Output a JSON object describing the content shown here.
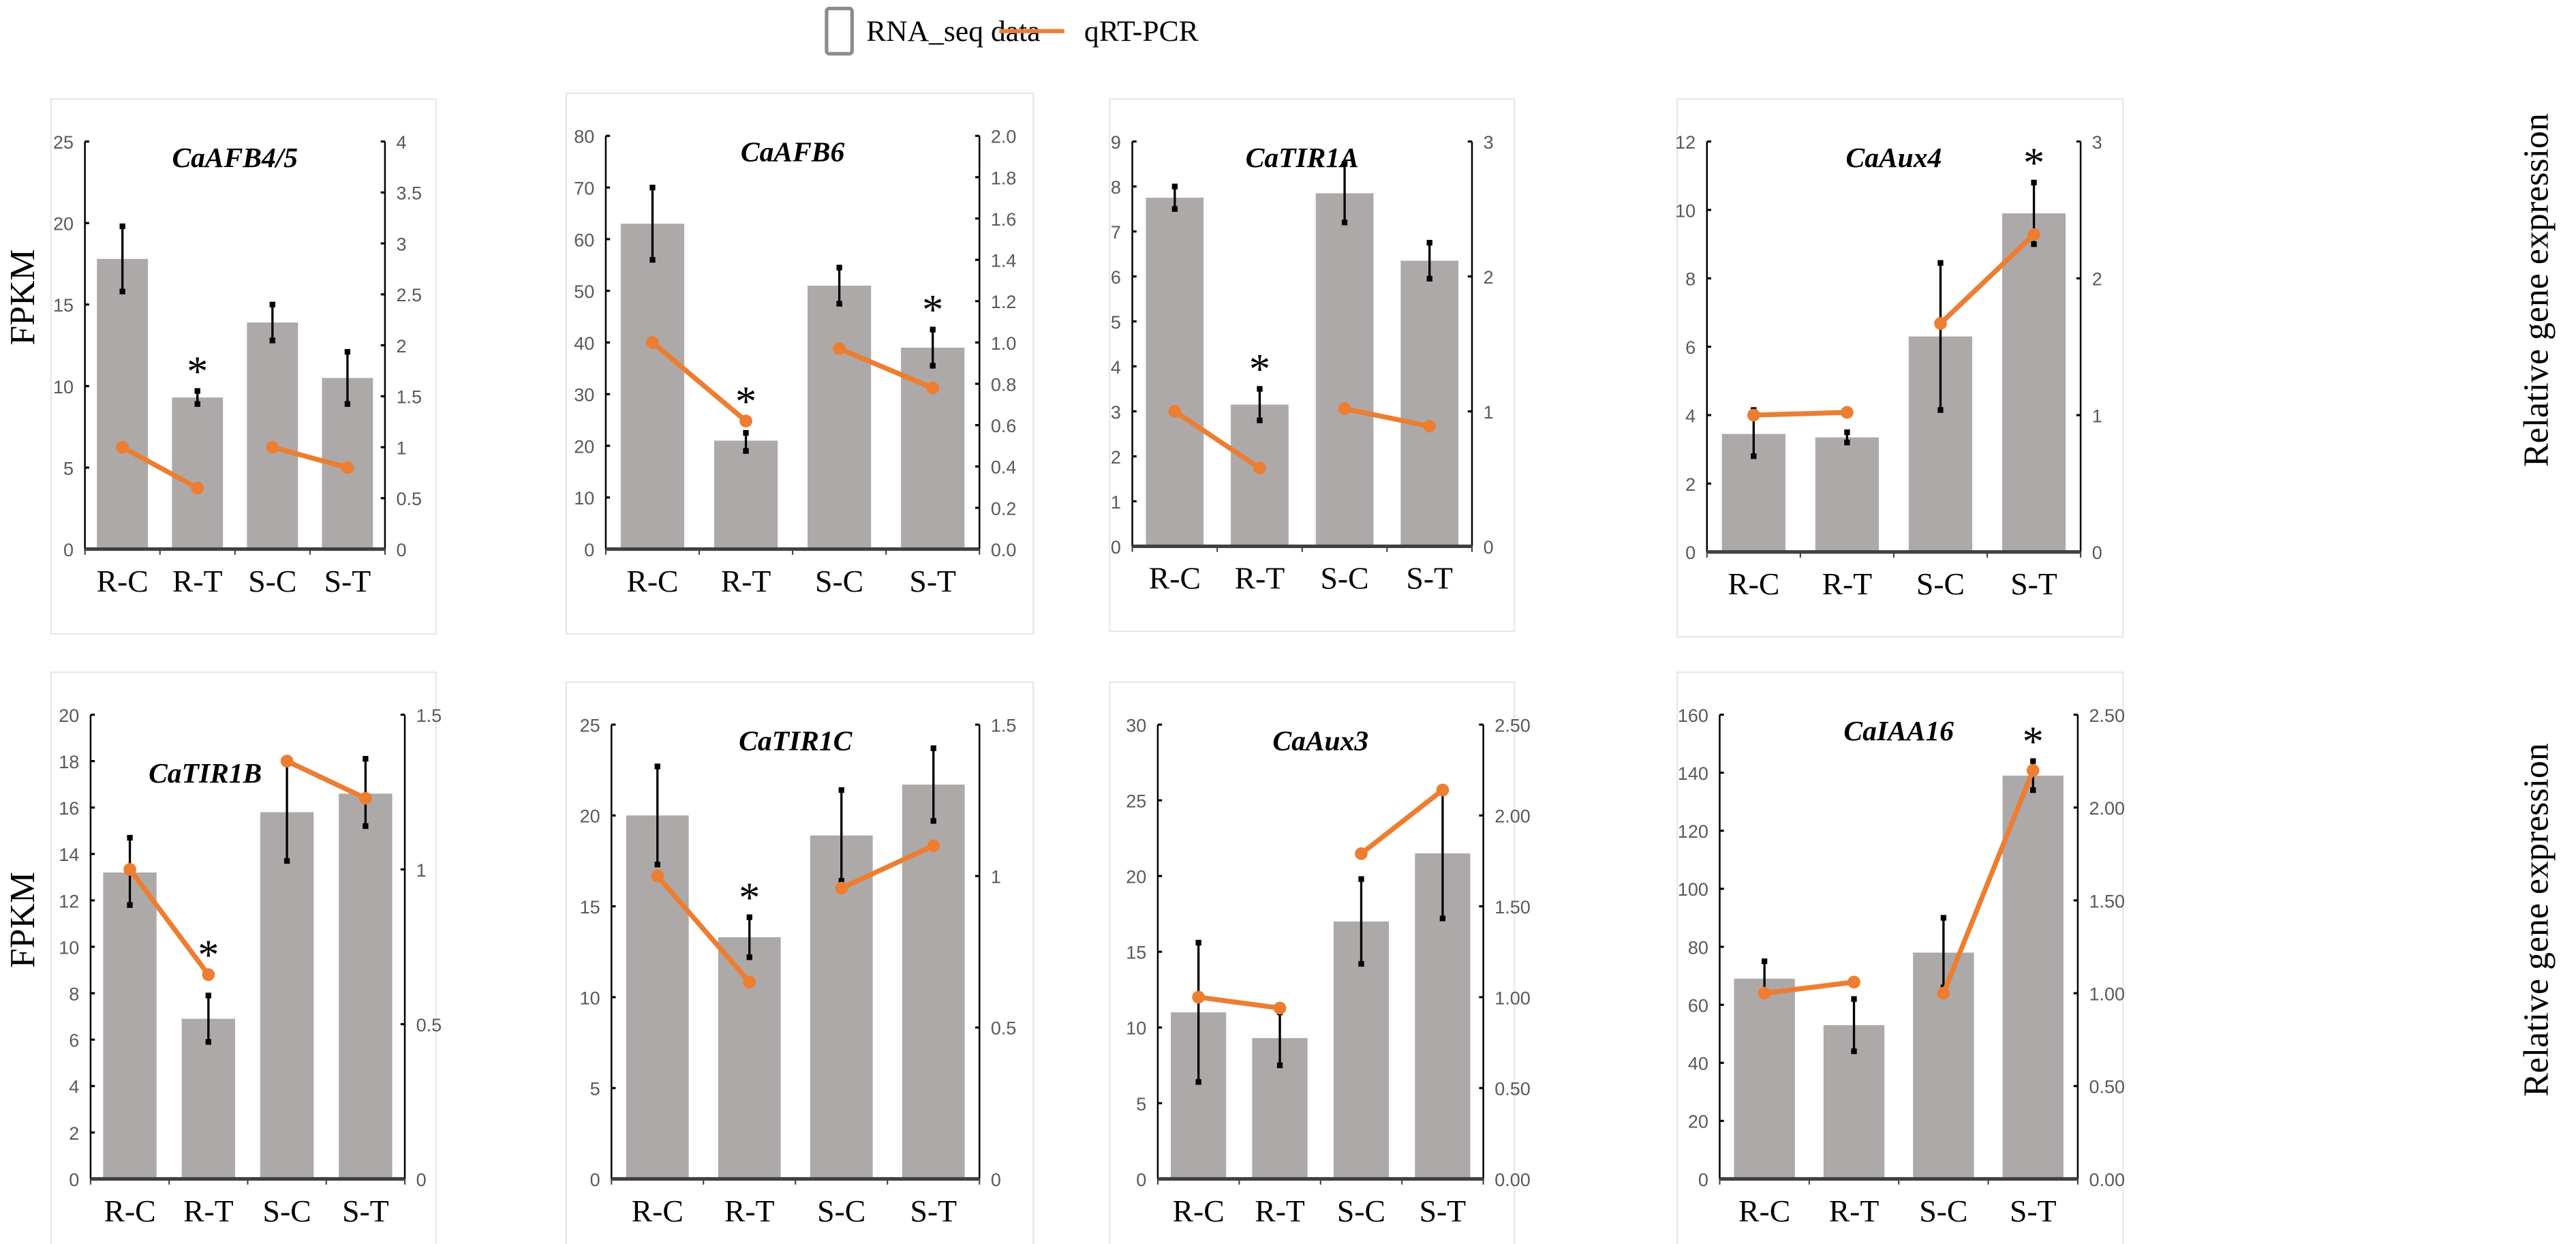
{
  "legend": {
    "bar_label": "RNA_seq data",
    "line_label": "qRT-PCR"
  },
  "left_axis_label": "FPKM",
  "right_axis_label": "Relative gene expression",
  "colors": {
    "bar": "#ADA9A8",
    "line": "#ED7D31",
    "error": "#000000"
  },
  "chart_data": [
    {
      "type": "bar+line",
      "title": "CaAFB4/5",
      "categories": [
        "R-C",
        "R-T",
        "S-C",
        "S-T"
      ],
      "bars": [
        17.8,
        9.3,
        13.9,
        10.5
      ],
      "err_low": [
        15.8,
        8.9,
        12.8,
        8.9
      ],
      "err_high": [
        19.8,
        9.7,
        15.0,
        12.1
      ],
      "qrt": [
        1.0,
        0.6,
        1.0,
        0.8
      ],
      "stars": [
        "R-T"
      ],
      "ylim": [
        0,
        25
      ],
      "y_ticks": [
        "0",
        "5",
        "10",
        "15",
        "20",
        "25"
      ],
      "y2lim": [
        0,
        4
      ],
      "y2_ticks": [
        "0",
        "0.5",
        "1",
        "1.5",
        "2",
        "2.5",
        "3",
        "3.5",
        "4"
      ]
    },
    {
      "type": "bar+line",
      "title": "CaAFB6",
      "categories": [
        "R-C",
        "R-T",
        "S-C",
        "S-T"
      ],
      "bars": [
        63,
        21,
        51,
        39
      ],
      "err_low": [
        56,
        19,
        47.5,
        35.5
      ],
      "err_high": [
        70,
        22.5,
        54.5,
        42.5
      ],
      "qrt": [
        1.0,
        0.62,
        0.97,
        0.78
      ],
      "stars": [
        "R-T",
        "S-T"
      ],
      "ylim": [
        0,
        80
      ],
      "y_ticks": [
        "0",
        "10",
        "20",
        "30",
        "40",
        "50",
        "60",
        "70",
        "80"
      ],
      "y2lim": [
        0,
        2
      ],
      "y2_ticks": [
        "0.0",
        "0.2",
        "0.4",
        "0.6",
        "0.8",
        "1.0",
        "1.2",
        "1.4",
        "1.6",
        "1.8",
        "2.0"
      ]
    },
    {
      "type": "bar+line",
      "title": "CaTIR1A",
      "categories": [
        "R-C",
        "R-T",
        "S-C",
        "S-T"
      ],
      "bars": [
        7.75,
        3.15,
        7.85,
        6.35
      ],
      "err_low": [
        7.5,
        2.8,
        7.2,
        5.95
      ],
      "err_high": [
        8.0,
        3.5,
        8.5,
        6.75
      ],
      "qrt": [
        1.0,
        0.58,
        1.02,
        0.89
      ],
      "stars": [
        "R-T"
      ],
      "ylim": [
        0,
        9
      ],
      "y_ticks": [
        "0",
        "1",
        "2",
        "3",
        "4",
        "5",
        "6",
        "7",
        "8",
        "9"
      ],
      "y2lim": [
        0,
        3
      ],
      "y2_ticks": [
        "0",
        "1",
        "2",
        "3"
      ]
    },
    {
      "type": "bar+line",
      "title": "CaAux4",
      "categories": [
        "R-C",
        "R-T",
        "S-C",
        "S-T"
      ],
      "bars": [
        3.45,
        3.35,
        6.3,
        9.9
      ],
      "err_low": [
        2.8,
        3.2,
        4.15,
        9.0
      ],
      "err_high": [
        4.15,
        3.5,
        8.45,
        10.8
      ],
      "qrt": [
        1.0,
        1.02,
        1.67,
        2.32
      ],
      "stars": [
        "S-T"
      ],
      "ylim": [
        0,
        12
      ],
      "y_ticks": [
        "0",
        "2",
        "4",
        "6",
        "8",
        "10",
        "12"
      ],
      "y2lim": [
        0,
        3
      ],
      "y2_ticks": [
        "0",
        "1",
        "2",
        "3"
      ]
    },
    {
      "type": "bar+line",
      "title": "CaTIR1B",
      "categories": [
        "R-C",
        "R-T",
        "S-C",
        "S-T"
      ],
      "bars": [
        13.2,
        6.9,
        15.8,
        16.6
      ],
      "err_low": [
        11.8,
        5.9,
        13.7,
        15.2
      ],
      "err_high": [
        14.7,
        7.9,
        17.9,
        18.1
      ],
      "qrt": [
        1.0,
        0.66,
        1.35,
        1.23
      ],
      "stars": [
        "R-T"
      ],
      "ylim": [
        0,
        20
      ],
      "y_ticks": [
        "0",
        "2",
        "4",
        "6",
        "8",
        "10",
        "12",
        "14",
        "16",
        "18",
        "20"
      ],
      "y2lim": [
        0,
        1.5
      ],
      "y2_ticks": [
        "0",
        "0.5",
        "1",
        "1.5"
      ]
    },
    {
      "type": "bar+line",
      "title": "CaTIR1C",
      "categories": [
        "R-C",
        "R-T",
        "S-C",
        "S-T"
      ],
      "bars": [
        20.0,
        13.3,
        18.9,
        21.7
      ],
      "err_low": [
        17.3,
        12.2,
        16.4,
        19.7
      ],
      "err_high": [
        22.7,
        14.4,
        21.4,
        23.7
      ],
      "qrt": [
        1.0,
        0.65,
        0.96,
        1.1
      ],
      "stars": [
        "R-T"
      ],
      "ylim": [
        0,
        25
      ],
      "y_ticks": [
        "0",
        "5",
        "10",
        "15",
        "20",
        "25"
      ],
      "y2lim": [
        0,
        1.5
      ],
      "y2_ticks": [
        "0",
        "0.5",
        "1",
        "1.5"
      ]
    },
    {
      "type": "bar+line",
      "title": "CaAux3",
      "categories": [
        "R-C",
        "R-T",
        "S-C",
        "S-T"
      ],
      "bars": [
        11.0,
        9.3,
        17.0,
        21.5
      ],
      "err_low": [
        6.4,
        7.5,
        14.2,
        17.2
      ],
      "err_high": [
        15.6,
        11.0,
        19.8,
        25.8
      ],
      "qrt": [
        1.0,
        0.94,
        1.79,
        2.14
      ],
      "stars": [],
      "ylim": [
        0,
        30
      ],
      "y_ticks": [
        "0",
        "5",
        "10",
        "15",
        "20",
        "25",
        "30"
      ],
      "y2lim": [
        0,
        2.5
      ],
      "y2_ticks": [
        "0.00",
        "0.50",
        "1.00",
        "1.50",
        "2.00",
        "2.50"
      ]
    },
    {
      "type": "bar+line",
      "title": "CaIAA16",
      "categories": [
        "R-C",
        "R-T",
        "S-C",
        "S-T"
      ],
      "bars": [
        69,
        53,
        78,
        139
      ],
      "err_low": [
        64,
        44,
        66,
        134
      ],
      "err_high": [
        75,
        62,
        90,
        144
      ],
      "qrt": [
        1.0,
        1.06,
        1.0,
        2.2
      ],
      "stars": [
        "S-T"
      ],
      "ylim": [
        0,
        160
      ],
      "y_ticks": [
        "0",
        "20",
        "40",
        "60",
        "80",
        "100",
        "120",
        "140",
        "160"
      ],
      "y2lim": [
        0,
        2.5
      ],
      "y2_ticks": [
        "0.00",
        "0.50",
        "1.00",
        "1.50",
        "2.00",
        "2.50"
      ]
    }
  ]
}
